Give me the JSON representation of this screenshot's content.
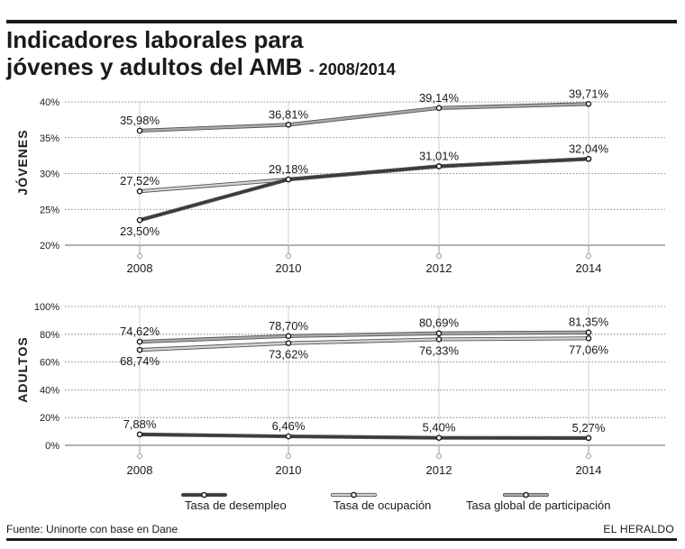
{
  "header": {
    "title_line1": "Indicadores laborales para",
    "title_line2": "jóvenes y adultos del AMB",
    "period": "- 2008/2014"
  },
  "legend": {
    "desempleo": "Tasa de desempleo",
    "ocupacion": "Tasa de ocupación",
    "participacion": "Tasa global de participación"
  },
  "footer": {
    "source": "Fuente: Uninorte con base en Dane",
    "brand": "EL HERALDO"
  },
  "colors": {
    "desempleo": "#3a3a3a",
    "ocupacion": "#d2d2d2",
    "participacion": "#a9a9a9",
    "grid": "#666666",
    "text": "#1a1a1a"
  },
  "chart_data": [
    {
      "type": "line",
      "title": "JÓVENES",
      "x": [
        "2008",
        "2010",
        "2012",
        "2014"
      ],
      "ylim": [
        20,
        40
      ],
      "yticks": [
        "20%",
        "25%",
        "30%",
        "35%",
        "40%"
      ],
      "series": [
        {
          "key": "participacion",
          "name": "Tasa global de participación",
          "values": [
            35.98,
            36.81,
            39.14,
            39.71
          ],
          "labels": [
            "35,98%",
            "36,81%",
            "39,14%",
            "39,71%"
          ],
          "label_pos": [
            "above",
            "above",
            "above",
            "above"
          ]
        },
        {
          "key": "ocupacion",
          "name": "Tasa de ocupación",
          "values": [
            27.52,
            29.18,
            31.01,
            32.04
          ],
          "labels": [
            "27,52%",
            "",
            "",
            ""
          ],
          "label_pos": [
            "above",
            "above",
            "above",
            "above"
          ]
        },
        {
          "key": "desempleo",
          "name": "Tasa de desempleo",
          "values": [
            23.5,
            29.18,
            31.01,
            32.04
          ],
          "labels": [
            "23,50%",
            "29,18%",
            "31,01%",
            "32,04%"
          ],
          "label_pos": [
            "below",
            "above",
            "above",
            "above"
          ]
        }
      ]
    },
    {
      "type": "line",
      "title": "ADULTOS",
      "x": [
        "2008",
        "2010",
        "2012",
        "2014"
      ],
      "ylim": [
        0,
        100
      ],
      "yticks": [
        "0%",
        "20%",
        "40%",
        "60%",
        "80%",
        "100%"
      ],
      "series": [
        {
          "key": "participacion",
          "name": "Tasa global de participación",
          "values": [
            74.62,
            78.7,
            80.69,
            81.35
          ],
          "labels": [
            "74,62%",
            "78,70%",
            "80,69%",
            "81,35%"
          ],
          "label_pos": [
            "above",
            "above",
            "above",
            "above"
          ]
        },
        {
          "key": "ocupacion",
          "name": "Tasa de ocupación",
          "values": [
            68.74,
            73.62,
            76.33,
            77.06
          ],
          "labels": [
            "68,74%",
            "73,62%",
            "76,33%",
            "77,06%"
          ],
          "label_pos": [
            "below",
            "below",
            "below",
            "below"
          ]
        },
        {
          "key": "desempleo",
          "name": "Tasa de desempleo",
          "values": [
            7.88,
            6.46,
            5.4,
            5.27
          ],
          "labels": [
            "7,88%",
            "6,46%",
            "5,40%",
            "5,27%"
          ],
          "label_pos": [
            "above",
            "above",
            "above",
            "above"
          ]
        }
      ]
    }
  ]
}
